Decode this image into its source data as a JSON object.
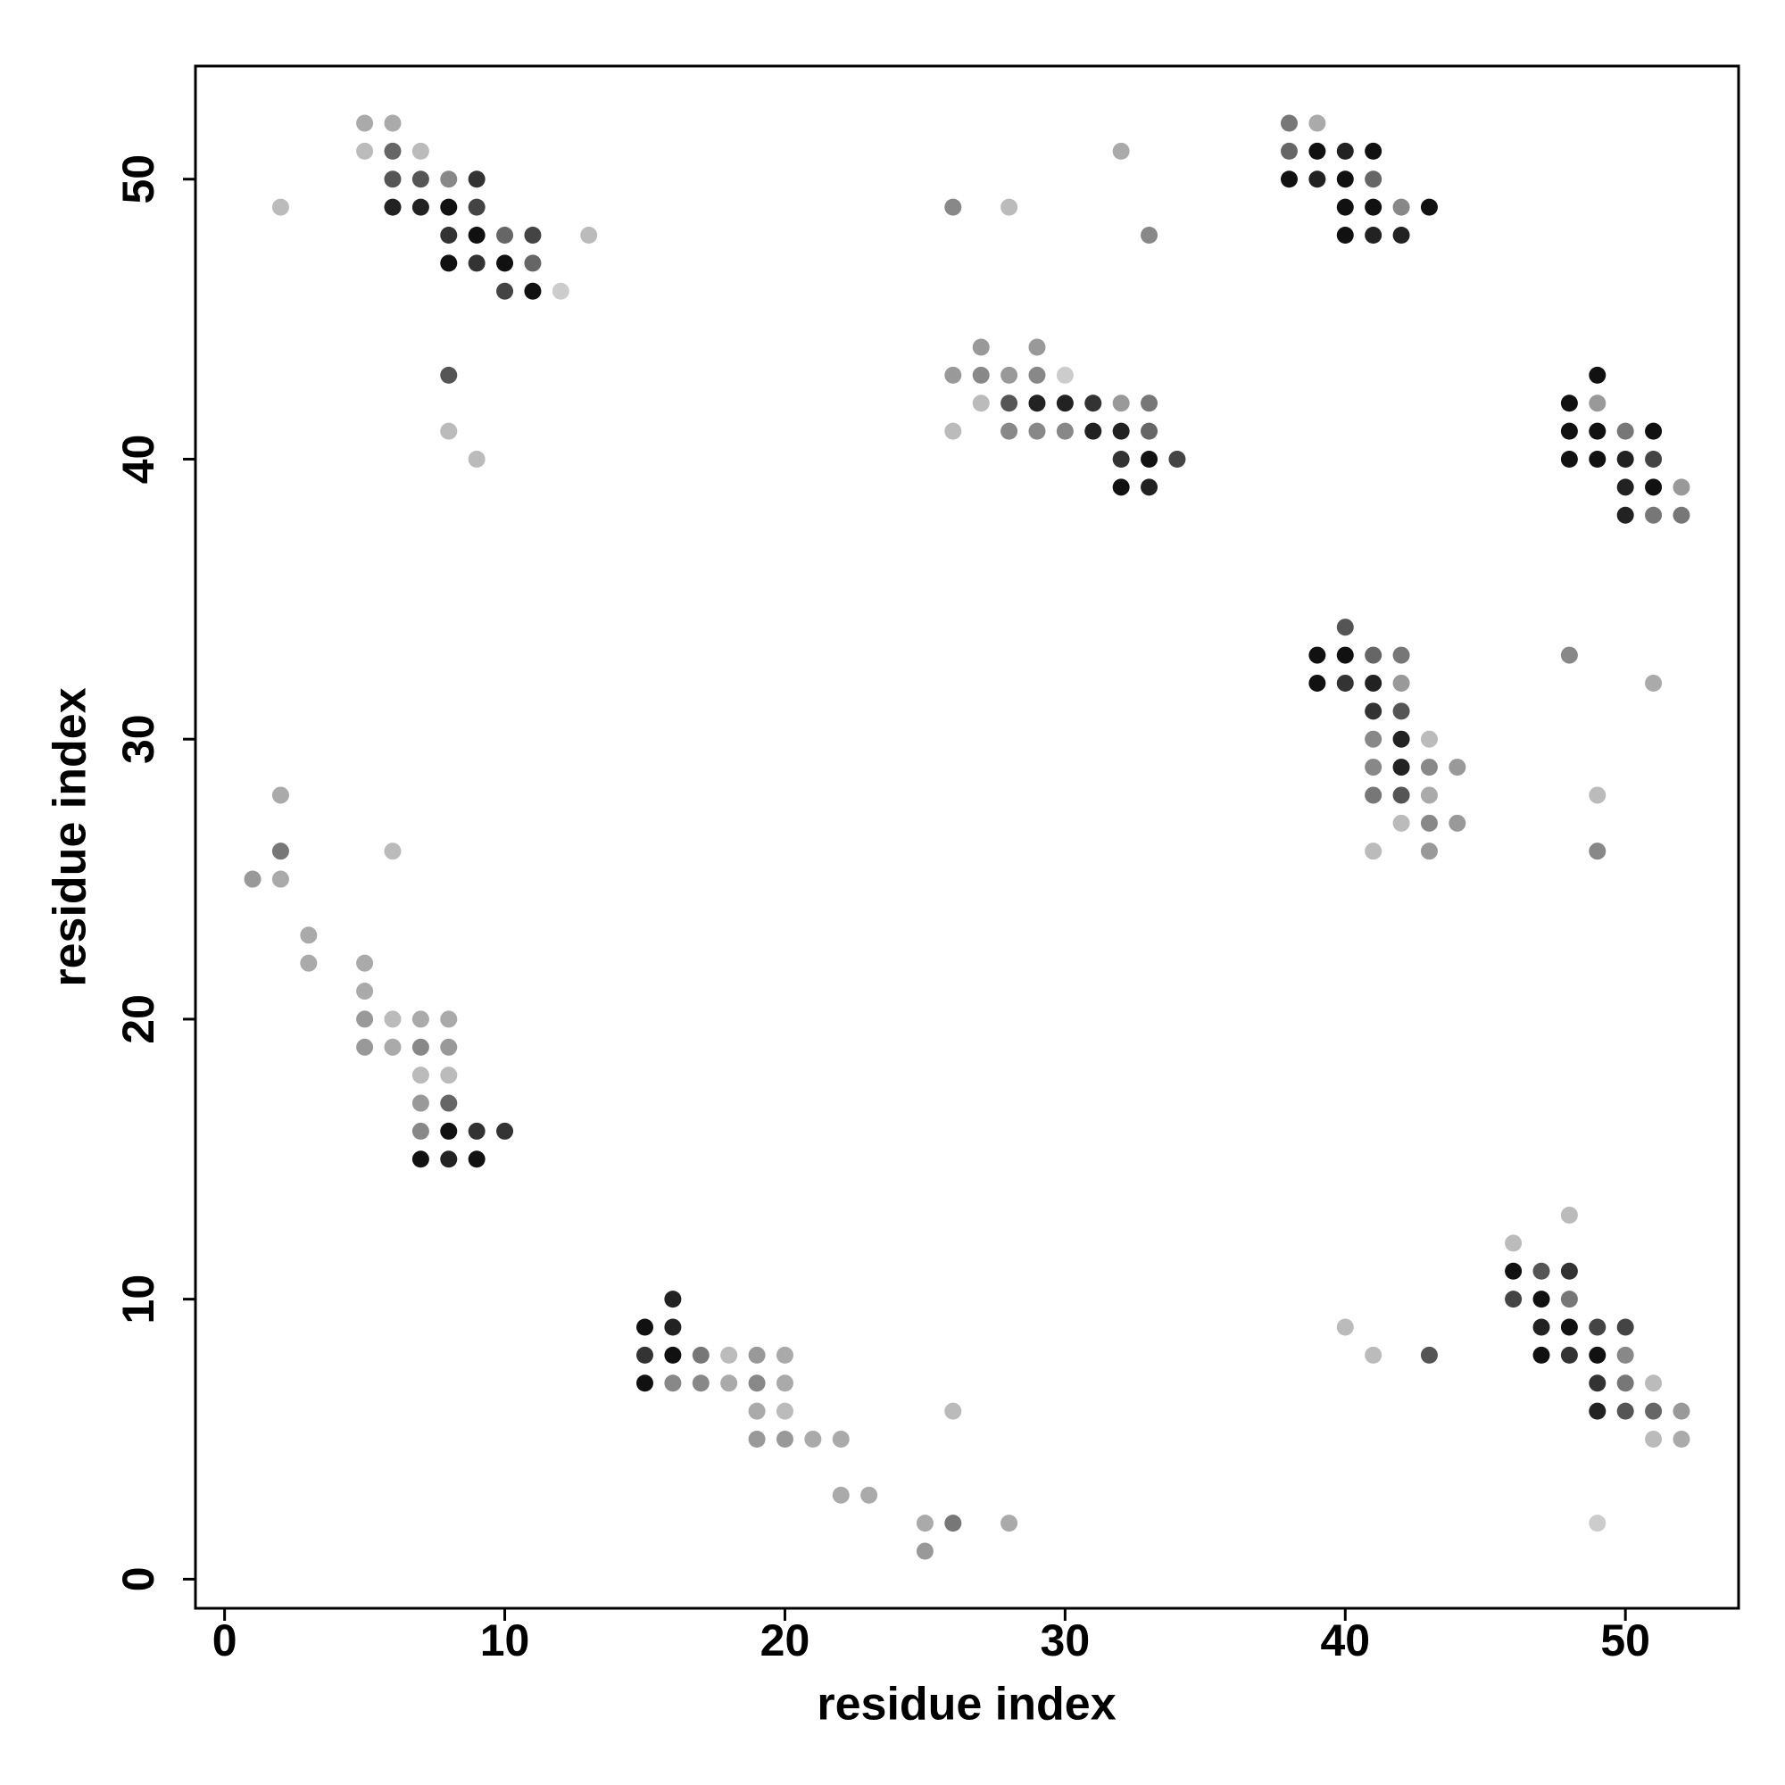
{
  "chart_data": {
    "type": "scatter",
    "x_label": "residue index",
    "y_label": "residue index",
    "xlim": [
      -1.04,
      54.04
    ],
    "ylim": [
      -1.04,
      54.04
    ],
    "xticks": [
      0,
      10,
      20,
      30,
      40,
      50
    ],
    "yticks": [
      0,
      10,
      20,
      30,
      40,
      50
    ],
    "x": [
      5,
      6,
      38,
      39,
      5,
      6,
      7,
      32,
      38,
      39,
      40,
      41,
      6,
      7,
      8,
      9,
      38,
      39,
      40,
      41,
      2,
      6,
      7,
      8,
      9,
      26,
      28,
      40,
      41,
      42,
      43,
      8,
      9,
      10,
      11,
      13,
      33,
      40,
      41,
      42,
      8,
      9,
      10,
      11,
      10,
      11,
      12,
      27,
      29,
      8,
      26,
      27,
      28,
      29,
      30,
      49,
      27,
      28,
      29,
      30,
      31,
      32,
      33,
      48,
      49,
      8,
      26,
      28,
      29,
      30,
      31,
      32,
      33,
      48,
      49,
      50,
      51,
      9,
      32,
      33,
      34,
      48,
      49,
      50,
      51,
      32,
      33,
      50,
      51,
      52,
      50,
      51,
      52,
      40,
      39,
      40,
      41,
      42,
      48,
      39,
      40,
      41,
      42,
      51,
      41,
      42,
      41,
      42,
      43,
      41,
      42,
      43,
      44,
      2,
      41,
      42,
      43,
      49,
      42,
      43,
      44,
      2,
      6,
      41,
      43,
      49,
      1,
      2,
      3,
      3,
      5,
      5,
      5,
      6,
      7,
      8,
      5,
      6,
      7,
      8,
      7,
      8,
      7,
      8,
      7,
      8,
      9,
      10,
      7,
      8,
      9,
      48,
      46,
      46,
      47,
      48,
      16,
      46,
      47,
      48,
      15,
      16,
      40,
      47,
      48,
      49,
      50,
      15,
      16,
      17,
      18,
      19,
      20,
      41,
      43,
      47,
      48,
      49,
      50,
      15,
      16,
      17,
      18,
      19,
      20,
      49,
      50,
      51,
      19,
      20,
      26,
      49,
      50,
      51,
      52,
      19,
      20,
      21,
      22,
      51,
      52,
      22,
      23,
      25,
      26,
      28,
      49,
      25
    ],
    "y": [
      52,
      52,
      52,
      52,
      51,
      51,
      51,
      51,
      51,
      51,
      51,
      51,
      50,
      50,
      50,
      50,
      50,
      50,
      50,
      50,
      49,
      49,
      49,
      49,
      49,
      49,
      49,
      49,
      49,
      49,
      49,
      48,
      48,
      48,
      48,
      48,
      48,
      48,
      48,
      48,
      47,
      47,
      47,
      47,
      46,
      46,
      46,
      44,
      44,
      43,
      43,
      43,
      43,
      43,
      43,
      43,
      42,
      42,
      42,
      42,
      42,
      42,
      42,
      42,
      42,
      41,
      41,
      41,
      41,
      41,
      41,
      41,
      41,
      41,
      41,
      41,
      41,
      40,
      40,
      40,
      40,
      40,
      40,
      40,
      40,
      39,
      39,
      39,
      39,
      39,
      38,
      38,
      38,
      34,
      33,
      33,
      33,
      33,
      33,
      32,
      32,
      32,
      32,
      32,
      31,
      31,
      30,
      30,
      30,
      29,
      29,
      29,
      29,
      28,
      28,
      28,
      28,
      28,
      27,
      27,
      27,
      26,
      26,
      26,
      26,
      26,
      25,
      25,
      23,
      22,
      22,
      21,
      20,
      20,
      20,
      20,
      19,
      19,
      19,
      19,
      18,
      18,
      17,
      17,
      16,
      16,
      16,
      16,
      15,
      15,
      15,
      13,
      12,
      11,
      11,
      11,
      10,
      10,
      10,
      10,
      9,
      9,
      9,
      9,
      9,
      9,
      9,
      8,
      8,
      8,
      8,
      8,
      8,
      8,
      8,
      8,
      8,
      8,
      8,
      7,
      7,
      7,
      7,
      7,
      7,
      7,
      7,
      7,
      6,
      6,
      6,
      6,
      6,
      6,
      6,
      5,
      5,
      5,
      5,
      5,
      5,
      3,
      3,
      2,
      2,
      2,
      2,
      1
    ],
    "colors": [
      "#aaa",
      "#aaa",
      "#777",
      "#aaa",
      "#bbb",
      "#666",
      "#bbb",
      "#aaa",
      "#666",
      "#111",
      "#222",
      "#111",
      "#555",
      "#555",
      "#888",
      "#333",
      "#111",
      "#222",
      "#111",
      "#666",
      "#bbb",
      "#222",
      "#222",
      "#111",
      "#444",
      "#888",
      "#bbb",
      "#111",
      "#111",
      "#888",
      "#111",
      "#333",
      "#111",
      "#666",
      "#444",
      "#bbb",
      "#888",
      "#111",
      "#222",
      "#222",
      "#111",
      "#333",
      "#111",
      "#666",
      "#444",
      "#111",
      "#ccc",
      "#999",
      "#999",
      "#555",
      "#999",
      "#888",
      "#999",
      "#888",
      "#ccc",
      "#111",
      "#bbb",
      "#555",
      "#222",
      "#222",
      "#333",
      "#999",
      "#777",
      "#111",
      "#999",
      "#bbb",
      "#bbb",
      "#888",
      "#888",
      "#888",
      "#222",
      "#222",
      "#666",
      "#111",
      "#111",
      "#777",
      "#111",
      "#bbb",
      "#333",
      "#111",
      "#444",
      "#111",
      "#111",
      "#222",
      "#444",
      "#111",
      "#222",
      "#222",
      "#111",
      "#999",
      "#222",
      "#777",
      "#777",
      "#555",
      "#111",
      "#111",
      "#666",
      "#777",
      "#888",
      "#111",
      "#333",
      "#222",
      "#999",
      "#aaa",
      "#333",
      "#555",
      "#888",
      "#222",
      "#bbb",
      "#888",
      "#222",
      "#888",
      "#999",
      "#aaa",
      "#777",
      "#555",
      "#aaa",
      "#bbb",
      "#bbb",
      "#888",
      "#999",
      "#777",
      "#bbb",
      "#bbb",
      "#999",
      "#888",
      "#999",
      "#aaa",
      "#aaa",
      "#aaa",
      "#aaa",
      "#aaa",
      "#999",
      "#bbb",
      "#aaa",
      "#aaa",
      "#999",
      "#aaa",
      "#888",
      "#999",
      "#bbb",
      "#bbb",
      "#999",
      "#666",
      "#888",
      "#111",
      "#333",
      "#333",
      "#111",
      "#222",
      "#111",
      "#bbb",
      "#bbb",
      "#111",
      "#555",
      "#333",
      "#222",
      "#444",
      "#111",
      "#777",
      "#111",
      "#222",
      "#bbb",
      "#222",
      "#111",
      "#444",
      "#444",
      "#333",
      "#111",
      "#777",
      "#bbb",
      "#999",
      "#aaa",
      "#bbb",
      "#555",
      "#111",
      "#333",
      "#111",
      "#888",
      "#111",
      "#888",
      "#888",
      "#aaa",
      "#888",
      "#aaa",
      "#333",
      "#777",
      "#bbb",
      "#aaa",
      "#bbb",
      "#bbb",
      "#222",
      "#555",
      "#666",
      "#999",
      "#999",
      "#999",
      "#aaa",
      "#aaa",
      "#bbb",
      "#aaa",
      "#aaa",
      "#aaa",
      "#aaa",
      "#777",
      "#aaa",
      "#ccc",
      "#999"
    ]
  }
}
